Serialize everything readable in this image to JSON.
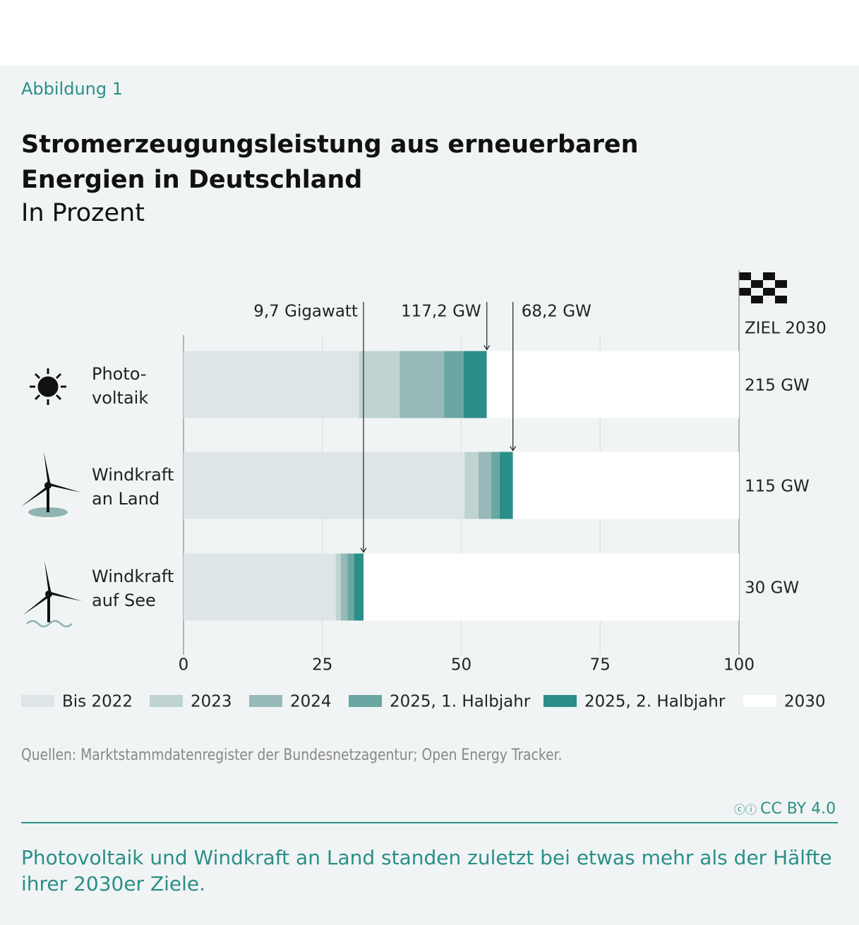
{
  "figure_label": "Abbildung 1",
  "chart_data": {
    "type": "stacked-bar-horizontal",
    "title": "Stromerzeugungsleistung aus erneuerbaren Energien in Deutschland",
    "subtitle": "In Prozent",
    "categories": [
      "Photo-\nvoltaik",
      "Windkraft\nan Land",
      "Windkraft\nauf See"
    ],
    "series": [
      {
        "name": "Bis 2022",
        "color": "#dde5e6",
        "values": [
          31.6,
          50.6,
          27.4
        ]
      },
      {
        "name": "2023",
        "color": "#bfd3d3",
        "values": [
          7.3,
          2.5,
          0.9
        ]
      },
      {
        "name": "2024",
        "color": "#97b9b8",
        "values": [
          8.0,
          2.3,
          1.2
        ]
      },
      {
        "name": "2025, 1. Halbjahr",
        "color": "#6aa7a2",
        "values": [
          3.5,
          1.5,
          1.2
        ]
      },
      {
        "name": "2025, 2. Halbjahr",
        "color": "#2a8f88",
        "values": [
          4.2,
          2.4,
          1.7
        ]
      },
      {
        "name": "2030",
        "color": "#ffffff",
        "values": [
          45.4,
          40.7,
          67.6
        ]
      }
    ],
    "xlim": [
      0,
      100
    ],
    "xticks": [
      0,
      25,
      50,
      75,
      100
    ],
    "grid": true,
    "end_labels": [
      "117,2 GW",
      "68,2 GW",
      "9,7 Gigawatt"
    ],
    "target_title": "ZIEL 2030",
    "target_labels": [
      "215 GW",
      "115 GW",
      "30 GW"
    ]
  },
  "source": "Quellen: Marktstammdatenregister der Bundesnetzagentur; Open Energy Tracker.",
  "license": "CC BY 4.0",
  "caption": "Photovoltaik und Windkraft an Land standen zuletzt bei etwas mehr als der Hälfte ihrer 2030er Ziele."
}
